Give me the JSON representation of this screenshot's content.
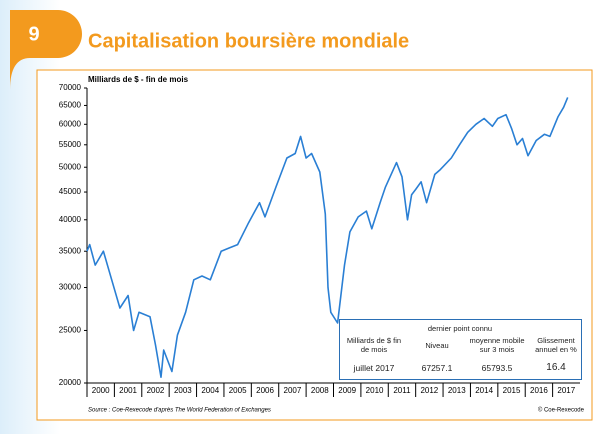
{
  "badge": "9",
  "chart_data": {
    "type": "line",
    "title": "Capitalisation boursière mondiale",
    "y_label": "Milliards de $ - fin de mois",
    "source": "Source : Coe-Rexecode d'après The World Federation of Exchanges",
    "copyright": "© Coe-Rexecode",
    "log_scale": true,
    "color": "#2a7fd4",
    "xlim": [
      2000,
      2018
    ],
    "xticks": [
      2000,
      2001,
      2002,
      2003,
      2004,
      2005,
      2006,
      2007,
      2008,
      2009,
      2010,
      2011,
      2012,
      2013,
      2014,
      2015,
      2016,
      2017
    ],
    "ylim": [
      20000,
      70000
    ],
    "yticks": [
      20000,
      25000,
      30000,
      35000,
      40000,
      45000,
      50000,
      55000,
      60000,
      65000,
      70000
    ],
    "x": [
      2000.0,
      2000.1,
      2000.3,
      2000.6,
      2000.9,
      2001.2,
      2001.5,
      2001.7,
      2001.9,
      2002.3,
      2002.5,
      2002.7,
      2002.8,
      2003.1,
      2003.3,
      2003.6,
      2003.9,
      2004.2,
      2004.5,
      2004.9,
      2005.2,
      2005.5,
      2005.9,
      2006.3,
      2006.5,
      2006.9,
      2007.3,
      2007.6,
      2007.8,
      2008.0,
      2008.2,
      2008.5,
      2008.7,
      2008.8,
      2008.9,
      2009.15,
      2009.4,
      2009.6,
      2009.9,
      2010.2,
      2010.4,
      2010.7,
      2010.9,
      2011.3,
      2011.5,
      2011.7,
      2011.85,
      2012.0,
      2012.2,
      2012.4,
      2012.7,
      2012.9,
      2013.3,
      2013.6,
      2013.9,
      2014.2,
      2014.5,
      2014.8,
      2015.0,
      2015.3,
      2015.5,
      2015.7,
      2015.9,
      2016.1,
      2016.4,
      2016.7,
      2016.9,
      2017.2,
      2017.4,
      2017.55
    ],
    "values": [
      35000,
      36000,
      33000,
      35000,
      31000,
      27500,
      29000,
      25000,
      27000,
      26500,
      23500,
      20500,
      23000,
      21000,
      24500,
      27000,
      31000,
      31500,
      31000,
      35000,
      35500,
      36000,
      39500,
      43000,
      40500,
      46000,
      52000,
      53000,
      57000,
      52000,
      53000,
      49000,
      41000,
      30000,
      27000,
      25800,
      33000,
      38000,
      40500,
      41500,
      38500,
      43000,
      46000,
      51000,
      48000,
      40000,
      44500,
      45500,
      47000,
      43000,
      48500,
      49500,
      52000,
      55000,
      58000,
      60000,
      61500,
      59500,
      61500,
      62500,
      59000,
      55000,
      56500,
      52500,
      56000,
      57500,
      57000,
      62000,
      64500,
      67257.1
    ],
    "inset": {
      "title": "dernier point connu",
      "headers": [
        "Milliards de $ fin de mois",
        "Niveau",
        "moyenne mobile sur 3 mois",
        "Glissement annuel en %"
      ],
      "row": [
        "juillet 2017",
        "67257.1",
        "65793.5",
        "16.4"
      ]
    }
  }
}
